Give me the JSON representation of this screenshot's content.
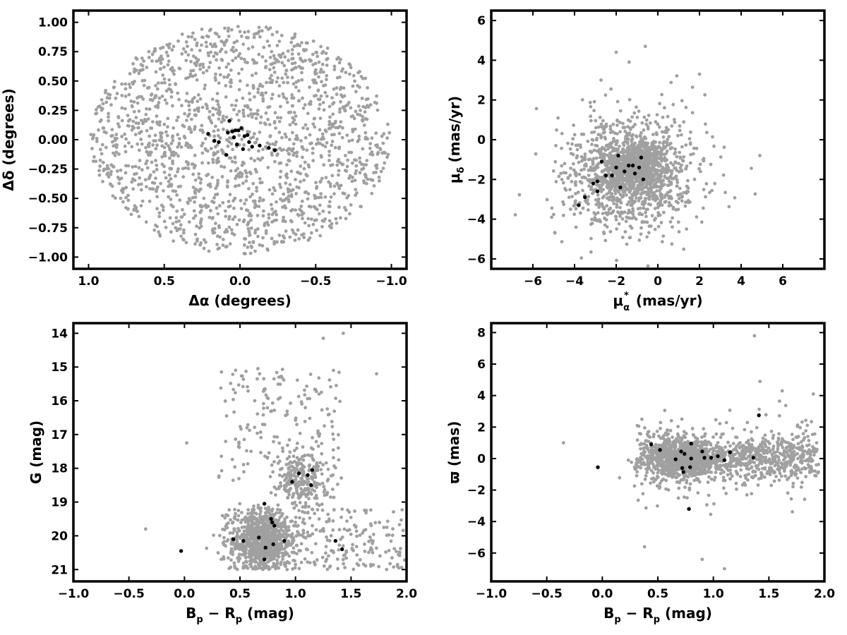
{
  "colors": {
    "field": "#a0a0a0",
    "member": "#000000",
    "axis": "#000000"
  },
  "chart_data": [
    {
      "id": "sky",
      "type": "scatter",
      "xlabel": "Δα (degrees)",
      "ylabel": "Δδ (degrees)",
      "xlim": [
        1.1,
        -1.1
      ],
      "ylim": [
        -1.1,
        1.1
      ],
      "xticks": [
        1.0,
        0.5,
        0.0,
        -0.5,
        -1.0
      ],
      "xtick_labels": [
        "1.0",
        "0.5",
        "0.0",
        "−0.5",
        "−1.0"
      ],
      "yticks": [
        1.0,
        0.75,
        0.5,
        0.25,
        0.0,
        -0.25,
        -0.5,
        -0.75,
        -1.0
      ],
      "ytick_labels": [
        "1.00",
        "0.75",
        "0.50",
        "0.25",
        "0.00",
        "−0.25",
        "−0.50",
        "−0.75",
        "−1.00"
      ],
      "field_distribution": "approximately uniform within a circle of radius 1 degree",
      "series": [
        {
          "role": "field",
          "color": "#a0a0a0",
          "count": 1700,
          "sample": [
            [
              0.9,
              0.1
            ],
            [
              -0.95,
              0.05
            ],
            [
              0.6,
              0.7
            ],
            [
              -0.55,
              0.75
            ],
            [
              0.1,
              0.95
            ],
            [
              -0.1,
              -0.95
            ],
            [
              0.7,
              -0.6
            ],
            [
              -0.7,
              -0.6
            ]
          ]
        },
        {
          "role": "member",
          "color": "#000000",
          "points": [
            [
              0.21,
              0.05
            ],
            [
              0.17,
              -0.01
            ],
            [
              0.14,
              -0.02
            ],
            [
              0.08,
              0.06
            ],
            [
              0.07,
              0.16
            ],
            [
              0.05,
              0.07
            ],
            [
              0.04,
              0.02
            ],
            [
              0.03,
              0.08
            ],
            [
              0.02,
              -0.04
            ],
            [
              0.01,
              0.08
            ],
            [
              -0.01,
              0.1
            ],
            [
              -0.02,
              -0.08
            ],
            [
              -0.03,
              0.03
            ],
            [
              -0.05,
              0.04
            ],
            [
              -0.06,
              -0.02
            ],
            [
              -0.08,
              -0.06
            ],
            [
              -0.13,
              -0.05
            ],
            [
              -0.19,
              -0.07
            ],
            [
              -0.23,
              -0.09
            ],
            [
              0.09,
              -0.13
            ]
          ]
        }
      ]
    },
    {
      "id": "pm",
      "type": "scatter",
      "xlabel_main": "μ",
      "xlabel_sub": "α",
      "xlabel_sup": "*",
      "xlabel_unit": "(mas/yr)",
      "ylabel_main": "μ",
      "ylabel_sub": "δ",
      "ylabel_unit": "(mas/yr)",
      "xlim": [
        -8.0,
        8.0
      ],
      "ylim": [
        -6.5,
        6.5
      ],
      "xticks": [
        -6,
        -4,
        -2,
        0,
        2,
        4,
        6
      ],
      "xtick_labels": [
        "−6",
        "−4",
        "−2",
        "0",
        "2",
        "4",
        "6"
      ],
      "yticks": [
        6,
        4,
        2,
        0,
        -2,
        -4,
        -6
      ],
      "ytick_labels": [
        "6",
        "4",
        "2",
        "0",
        "−2",
        "−4",
        "−6"
      ],
      "field_distribution": "broad cloud centred near (-1.0, -1.7), x spread about -5 to 4, y spread about -4.8 to 4.6",
      "series": [
        {
          "role": "field",
          "color": "#a0a0a0",
          "count": 1700,
          "sample": [
            [
              -1.0,
              -1.7
            ],
            [
              -3.5,
              -1.0
            ],
            [
              0.5,
              0.5
            ],
            [
              -2.0,
              4.4
            ],
            [
              -0.6,
              4.7
            ],
            [
              2.0,
              3.3
            ],
            [
              4.9,
              -0.8
            ],
            [
              -4.9,
              -0.3
            ]
          ]
        },
        {
          "role": "member",
          "color": "#000000",
          "points": [
            [
              -3.8,
              -3.3
            ],
            [
              -3.5,
              -2.9
            ],
            [
              -3.1,
              -2.2
            ],
            [
              -2.9,
              -2.1
            ],
            [
              -2.9,
              -2.6
            ],
            [
              -2.7,
              -1.1
            ],
            [
              -2.5,
              -1.8
            ],
            [
              -2.2,
              -1.8
            ],
            [
              -2.0,
              -1.4
            ],
            [
              -1.9,
              -0.8
            ],
            [
              -1.8,
              -2.4
            ],
            [
              -1.6,
              -1.6
            ],
            [
              -1.4,
              -1.3
            ],
            [
              -1.2,
              -1.3
            ],
            [
              -1.1,
              -1.7
            ],
            [
              -0.9,
              -1.4
            ],
            [
              -0.8,
              -0.9
            ],
            [
              -0.7,
              -2.0
            ]
          ]
        }
      ]
    },
    {
      "id": "cmd",
      "type": "scatter",
      "xlabel_main": "B",
      "xlabel_sub1": "p",
      "xlabel_mid": " − R",
      "xlabel_sub2": "p",
      "xlabel_unit": " (mag)",
      "ylabel": "G (mag)",
      "xlim": [
        -1.0,
        2.0
      ],
      "ylim": [
        21.35,
        13.7
      ],
      "xticks": [
        -1.0,
        -0.5,
        0.0,
        0.5,
        1.0,
        1.5,
        2.0
      ],
      "xtick_labels": [
        "−1.0",
        "−0.5",
        "0.0",
        "0.5",
        "1.0",
        "1.5",
        "2.0"
      ],
      "yticks": [
        21,
        20,
        19,
        18,
        17,
        16,
        15,
        14
      ],
      "ytick_labels": [
        "21",
        "20",
        "19",
        "18",
        "17",
        "16",
        "15",
        "14"
      ],
      "field_distribution": "dense clump near (0.7, 20.2), red clump near (1.05, 18.3), sparse tail to bright magnitudes",
      "series": [
        {
          "role": "field",
          "color": "#a0a0a0",
          "count": 1500,
          "sample": [
            [
              0.7,
              20.2
            ],
            [
              1.05,
              18.3
            ],
            [
              -0.35,
              19.8
            ],
            [
              0.85,
              15.3
            ],
            [
              1.25,
              14.15
            ],
            [
              1.43,
              14.0
            ],
            [
              1.73,
              15.2
            ],
            [
              0.02,
              17.25
            ]
          ]
        },
        {
          "role": "member",
          "color": "#000000",
          "points": [
            [
              -0.03,
              20.45
            ],
            [
              0.44,
              20.1
            ],
            [
              0.53,
              20.15
            ],
            [
              0.67,
              20.05
            ],
            [
              0.72,
              20.7
            ],
            [
              0.72,
              19.05
            ],
            [
              0.73,
              20.35
            ],
            [
              0.78,
              19.5
            ],
            [
              0.79,
              19.6
            ],
            [
              0.8,
              20.25
            ],
            [
              0.81,
              19.7
            ],
            [
              0.9,
              20.15
            ],
            [
              0.97,
              18.4
            ],
            [
              1.03,
              18.15
            ],
            [
              1.11,
              18.2
            ],
            [
              1.14,
              18.5
            ],
            [
              1.15,
              18.05
            ],
            [
              1.36,
              20.15
            ],
            [
              1.42,
              20.4
            ]
          ]
        }
      ]
    },
    {
      "id": "plx",
      "type": "scatter",
      "xlabel_main": "B",
      "xlabel_sub1": "p",
      "xlabel_mid": " − R",
      "xlabel_sub2": "p",
      "xlabel_unit": " (mag)",
      "ylabel": "ϖ (mas)",
      "xlim": [
        -1.0,
        2.0
      ],
      "ylim": [
        -7.8,
        8.6
      ],
      "xticks": [
        -1.0,
        -0.5,
        0.0,
        0.5,
        1.0,
        1.5,
        2.0
      ],
      "xtick_labels": [
        "−1.0",
        "−0.5",
        "0.0",
        "0.5",
        "1.0",
        "1.5",
        "2.0"
      ],
      "yticks": [
        8,
        6,
        4,
        2,
        0,
        -2,
        -4,
        -6
      ],
      "ytick_labels": [
        "8",
        "6",
        "4",
        "2",
        "0",
        "−2",
        "−4",
        "−6"
      ],
      "field_distribution": "dense band around ϖ=0 for Bp−Rp 0.3 to 2.0, spread about ±2 mas",
      "series": [
        {
          "role": "field",
          "color": "#a0a0a0",
          "count": 1700,
          "sample": [
            [
              0.7,
              0.0
            ],
            [
              1.37,
              7.8
            ],
            [
              1.42,
              4.9
            ],
            [
              0.9,
              -6.4
            ],
            [
              1.1,
              -7.0
            ],
            [
              0.38,
              -5.6
            ],
            [
              -0.35,
              1.0
            ],
            [
              1.9,
              4.1
            ]
          ]
        },
        {
          "role": "member",
          "color": "#000000",
          "points": [
            [
              -0.04,
              -0.55
            ],
            [
              0.44,
              0.9
            ],
            [
              0.52,
              0.55
            ],
            [
              0.66,
              -0.05
            ],
            [
              0.71,
              0.45
            ],
            [
              0.72,
              -0.6
            ],
            [
              0.73,
              -0.85
            ],
            [
              0.74,
              0.3
            ],
            [
              0.78,
              -3.2
            ],
            [
              0.79,
              -0.55
            ],
            [
              0.8,
              0.95
            ],
            [
              0.8,
              0.0
            ],
            [
              0.9,
              0.45
            ],
            [
              0.92,
              0.05
            ],
            [
              0.98,
              0.05
            ],
            [
              1.04,
              0.15
            ],
            [
              1.1,
              -0.1
            ],
            [
              1.15,
              0.4
            ],
            [
              1.36,
              0.05
            ],
            [
              1.41,
              2.75
            ]
          ]
        }
      ]
    }
  ]
}
